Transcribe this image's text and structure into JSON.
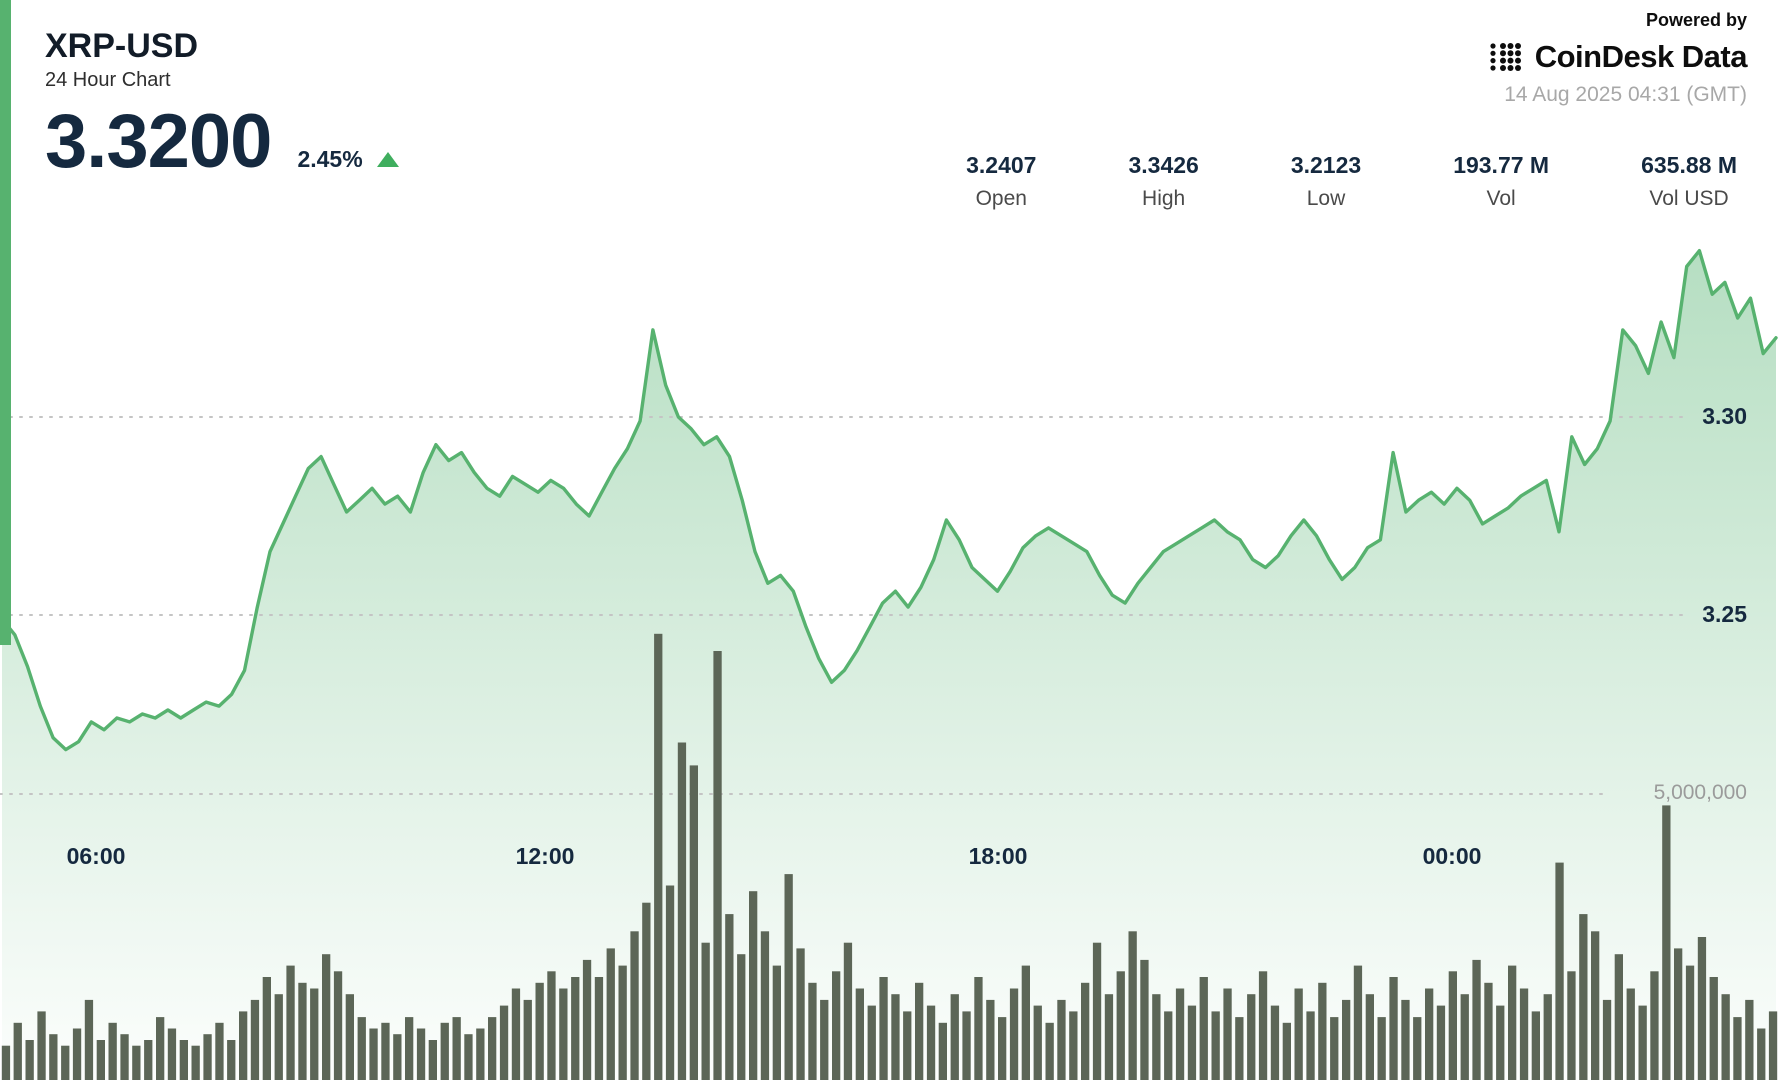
{
  "header": {
    "symbol": "XRP-USD",
    "subtitle": "24 Hour Chart",
    "price": "3.3200",
    "change_percent": "2.45%",
    "change_direction": "up"
  },
  "powered_by": {
    "label": "Powered by",
    "brand": "CoinDesk Data",
    "timestamp": "14 Aug 2025 04:31 (GMT)"
  },
  "stats": [
    {
      "value": "3.2407",
      "label": "Open"
    },
    {
      "value": "3.3426",
      "label": "High"
    },
    {
      "value": "3.2123",
      "label": "Low"
    },
    {
      "value": "193.77 M",
      "label": "Vol"
    },
    {
      "value": "635.88 M",
      "label": "Vol USD"
    }
  ],
  "colors": {
    "line": "#57b26f",
    "area_top": "rgba(105,188,130,0.50)",
    "area_bottom": "rgba(105,188,130,0.02)",
    "volume_bar": "#5c6657",
    "grid": "#c4c4c4",
    "price_text": "#15293f",
    "up_green": "#3fae5e"
  },
  "chart_data": [
    {
      "type": "area",
      "name": "XRP-USD price (24h)",
      "x_ticks": [
        "06:00",
        "12:00",
        "18:00",
        "00:00"
      ],
      "y_gridlines": [
        3.3,
        3.25
      ],
      "y_gridline_labels": [
        "3.30",
        "3.25"
      ],
      "open": 3.2407,
      "high": 3.3426,
      "low": 3.2123,
      "last": 3.32,
      "values": [
        3.249,
        3.245,
        3.237,
        3.227,
        3.219,
        3.216,
        3.218,
        3.223,
        3.221,
        3.224,
        3.223,
        3.225,
        3.224,
        3.226,
        3.224,
        3.226,
        3.228,
        3.227,
        3.23,
        3.236,
        3.252,
        3.266,
        3.273,
        3.28,
        3.287,
        3.29,
        3.283,
        3.276,
        3.279,
        3.282,
        3.278,
        3.28,
        3.276,
        3.286,
        3.293,
        3.289,
        3.291,
        3.286,
        3.282,
        3.28,
        3.285,
        3.283,
        3.281,
        3.284,
        3.282,
        3.278,
        3.275,
        3.281,
        3.287,
        3.292,
        3.299,
        3.322,
        3.308,
        3.3,
        3.297,
        3.293,
        3.295,
        3.29,
        3.279,
        3.266,
        3.258,
        3.26,
        3.256,
        3.247,
        3.239,
        3.233,
        3.236,
        3.241,
        3.247,
        3.253,
        3.256,
        3.252,
        3.257,
        3.264,
        3.274,
        3.269,
        3.262,
        3.259,
        3.256,
        3.261,
        3.267,
        3.27,
        3.272,
        3.27,
        3.268,
        3.266,
        3.26,
        3.255,
        3.253,
        3.258,
        3.262,
        3.266,
        3.268,
        3.27,
        3.272,
        3.274,
        3.271,
        3.269,
        3.264,
        3.262,
        3.265,
        3.27,
        3.274,
        3.27,
        3.264,
        3.259,
        3.262,
        3.267,
        3.269,
        3.291,
        3.276,
        3.279,
        3.281,
        3.278,
        3.282,
        3.279,
        3.273,
        3.275,
        3.277,
        3.28,
        3.282,
        3.284,
        3.271,
        3.295,
        3.288,
        3.292,
        3.299,
        3.322,
        3.318,
        3.311,
        3.324,
        3.315,
        3.338,
        3.342,
        3.331,
        3.334,
        3.325,
        3.33,
        3.316,
        3.32
      ]
    },
    {
      "type": "bar",
      "name": "Volume",
      "y_gridline_label": "5,000,000",
      "y_gridline_value_millions": 5,
      "values_millions": [
        0.6,
        1.0,
        0.7,
        1.2,
        0.8,
        0.6,
        0.9,
        1.4,
        0.7,
        1.0,
        0.8,
        0.6,
        0.7,
        1.1,
        0.9,
        0.7,
        0.6,
        0.8,
        1.0,
        0.7,
        1.2,
        1.4,
        1.8,
        1.5,
        2.0,
        1.7,
        1.6,
        2.2,
        1.9,
        1.5,
        1.1,
        0.9,
        1.0,
        0.8,
        1.1,
        0.9,
        0.7,
        1.0,
        1.1,
        0.8,
        0.9,
        1.1,
        1.3,
        1.6,
        1.4,
        1.7,
        1.9,
        1.6,
        1.8,
        2.1,
        1.8,
        2.3,
        2.0,
        2.6,
        3.1,
        7.8,
        3.4,
        5.9,
        5.5,
        2.4,
        7.5,
        2.9,
        2.2,
        3.3,
        2.6,
        2.0,
        3.6,
        2.3,
        1.7,
        1.4,
        1.9,
        2.4,
        1.6,
        1.3,
        1.8,
        1.5,
        1.2,
        1.7,
        1.3,
        1.0,
        1.5,
        1.2,
        1.8,
        1.4,
        1.1,
        1.6,
        2.0,
        1.3,
        1.0,
        1.4,
        1.2,
        1.7,
        2.4,
        1.5,
        1.9,
        2.6,
        2.1,
        1.5,
        1.2,
        1.6,
        1.3,
        1.8,
        1.2,
        1.6,
        1.1,
        1.5,
        1.9,
        1.3,
        1.0,
        1.6,
        1.2,
        1.7,
        1.1,
        1.4,
        2.0,
        1.5,
        1.1,
        1.8,
        1.4,
        1.1,
        1.6,
        1.3,
        1.9,
        1.5,
        2.1,
        1.7,
        1.3,
        2.0,
        1.6,
        1.2,
        1.5,
        3.8,
        1.9,
        2.9,
        2.6,
        1.4,
        2.2,
        1.6,
        1.3,
        1.9,
        4.8,
        2.3,
        2.0,
        2.5,
        1.8,
        1.5,
        1.1,
        1.4,
        0.9,
        1.2
      ]
    }
  ]
}
